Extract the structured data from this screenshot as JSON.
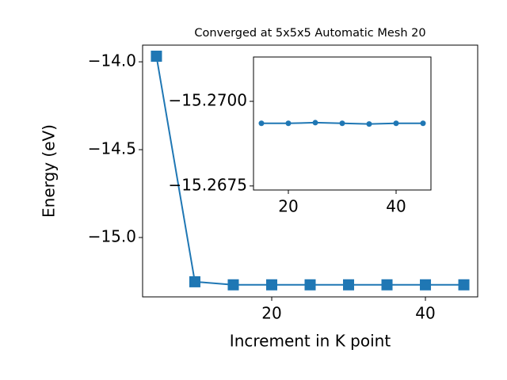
{
  "chart_data": [
    {
      "type": "line",
      "title": "Converged at 5x5x5 Automatic Mesh 20",
      "x_label": "Increment in K point",
      "y_label": "Energy (eV)",
      "x": [
        5,
        10,
        15,
        20,
        25,
        30,
        35,
        40,
        45
      ],
      "series": [
        {
          "name": "Energy",
          "color": "#1f77b4",
          "marker": "square",
          "values": [
            -13.968,
            -15.252,
            -15.26935,
            -15.26935,
            -15.26937,
            -15.26935,
            -15.26933,
            -15.26935,
            -15.26935
          ]
        }
      ],
      "xlim": [
        3.2,
        46.8
      ],
      "xticks": [
        20,
        40
      ],
      "ylim": [
        -15.338,
        -13.905
      ],
      "yticks": [
        {
          "value": -15.0,
          "label": "−15.0"
        },
        {
          "value": -14.5,
          "label": "−14.5"
        },
        {
          "value": -14.0,
          "label": "−14.0"
        }
      ]
    },
    {
      "type": "line",
      "x": [
        15,
        20,
        25,
        30,
        35,
        40,
        45
      ],
      "series": [
        {
          "name": "Inset",
          "color": "#1f77b4",
          "marker": "circle",
          "values": [
            -15.26935,
            -15.26935,
            -15.26937,
            -15.26935,
            -15.26933,
            -15.26935,
            -15.26935
          ]
        }
      ],
      "xlim": [
        13.53,
        46.47
      ],
      "xticks": [
        20,
        40
      ],
      "ylim": [
        -15.26738,
        -15.27131
      ],
      "yticks": [
        {
          "value": -15.2675,
          "label": "−15.2675"
        },
        {
          "value": -15.27,
          "label": "−15.2700"
        }
      ]
    }
  ]
}
